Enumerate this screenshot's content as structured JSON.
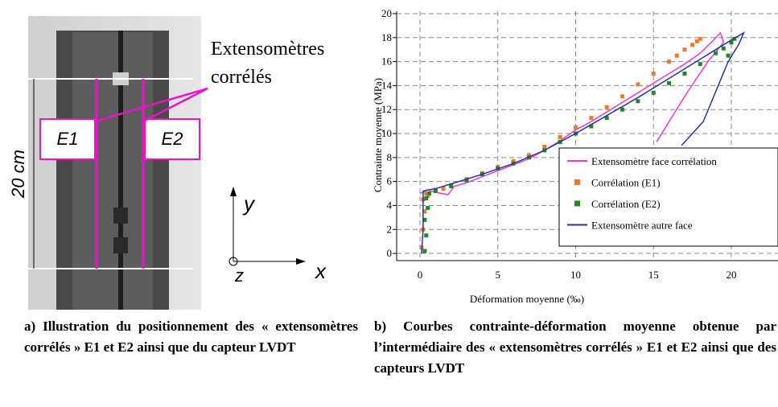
{
  "figure": {
    "left": {
      "label_extenso": "Extensomètres",
      "label_correles": "corrélés",
      "e1": "E1",
      "e2": "E2",
      "length": "20 cm",
      "axis_y": "y",
      "axis_x": "x",
      "axis_z": "z"
    },
    "caption_a": "a) Illustration du positionnement des « extensomètres corrélés » E1 et E2 ainsi que du capteur LVDT",
    "caption_b": "b) Courbes contrainte-déformation moyenne obtenue par l’intermédiaire des « extensomètres corrélés » E1 et E2 ainsi que des capteurs LVDT"
  },
  "chart_data": {
    "type": "line",
    "x_label": "Déformation moyenne (‰)",
    "y_label": "Contrainte moyenne (MPa)",
    "xlim": [
      -1.5,
      23
    ],
    "ylim": [
      -0.6,
      20.2
    ],
    "xticks": [
      0,
      5,
      10,
      15,
      20
    ],
    "yticks": [
      0,
      2,
      4,
      6,
      8,
      10,
      12,
      14,
      16,
      18,
      20
    ],
    "grid": true,
    "legend": "lower right",
    "series": [
      {
        "name": "Extensomètre face corrélation",
        "color": "#ff33cc",
        "style": "line",
        "x": [
          0,
          0.5,
          1,
          1.8,
          2.2,
          3,
          4,
          5,
          6,
          7,
          8,
          9,
          10,
          11,
          12,
          13,
          14,
          15,
          16,
          17,
          18,
          18.7,
          19.3,
          19.5,
          18.5,
          17.2,
          16,
          15.2
        ],
        "values": [
          5,
          5.3,
          5.1,
          4.9,
          5.6,
          5.9,
          6.4,
          6.9,
          7.4,
          7.9,
          8.6,
          9.4,
          10.3,
          11,
          11.8,
          12.6,
          13.4,
          14.2,
          15,
          15.8,
          16.7,
          17.6,
          18.4,
          17.6,
          16,
          13.5,
          11,
          9.3
        ]
      },
      {
        "name": "Corrélation (E1)",
        "color": "#f07828",
        "style": "scatter",
        "x": [
          0.1,
          0.2,
          0.3,
          0.2,
          0.4,
          0.5,
          1,
          1.5,
          2,
          3,
          4,
          5,
          6,
          7,
          8,
          9,
          10,
          11,
          12,
          13,
          14,
          15,
          16,
          16.5,
          17,
          17.5,
          17.8,
          18
        ],
        "values": [
          0.5,
          2,
          3.5,
          4.5,
          5,
          4.8,
          5.3,
          5.4,
          5.7,
          6.2,
          6.7,
          7.2,
          7.7,
          8.2,
          8.9,
          9.7,
          10.5,
          11.3,
          12.2,
          13.1,
          14.1,
          15,
          16,
          16.5,
          17,
          17.4,
          17.7,
          17.9
        ]
      },
      {
        "name": "Corrélation (E2)",
        "color": "#1f8a1f",
        "style": "scatter",
        "x": [
          0.3,
          0.4,
          0.3,
          0.5,
          0.4,
          0.6,
          1,
          2,
          3,
          4,
          5,
          6,
          7,
          8,
          9,
          10,
          11,
          12,
          13,
          14,
          15,
          16,
          17,
          18,
          19,
          19.5,
          20,
          19.8,
          20.2
        ],
        "values": [
          0.2,
          1.5,
          2.8,
          3.8,
          4.6,
          5,
          5.2,
          5.6,
          6.1,
          6.6,
          7.1,
          7.5,
          8,
          8.6,
          9.3,
          10,
          10.6,
          11.3,
          12,
          12.7,
          13.4,
          14.2,
          15,
          15.8,
          16.7,
          17.1,
          17.6,
          16.5,
          17.9
        ]
      },
      {
        "name": "Extensomètre autre face",
        "color": "#2233aa",
        "style": "line",
        "x": [
          0.1,
          0.2,
          0.2,
          0.5,
          1,
          2,
          4,
          6,
          8,
          10,
          12,
          14,
          16,
          18,
          19,
          20,
          20.8,
          20.5,
          19.8,
          19,
          18.2,
          17.5,
          16.8
        ],
        "values": [
          0,
          2,
          5.2,
          5.3,
          5.4,
          5.8,
          6.6,
          7.5,
          8.6,
          10,
          11.5,
          13,
          14.6,
          16.2,
          17,
          17.8,
          18.4,
          17.5,
          16,
          13.5,
          11,
          10,
          9
        ]
      }
    ]
  }
}
